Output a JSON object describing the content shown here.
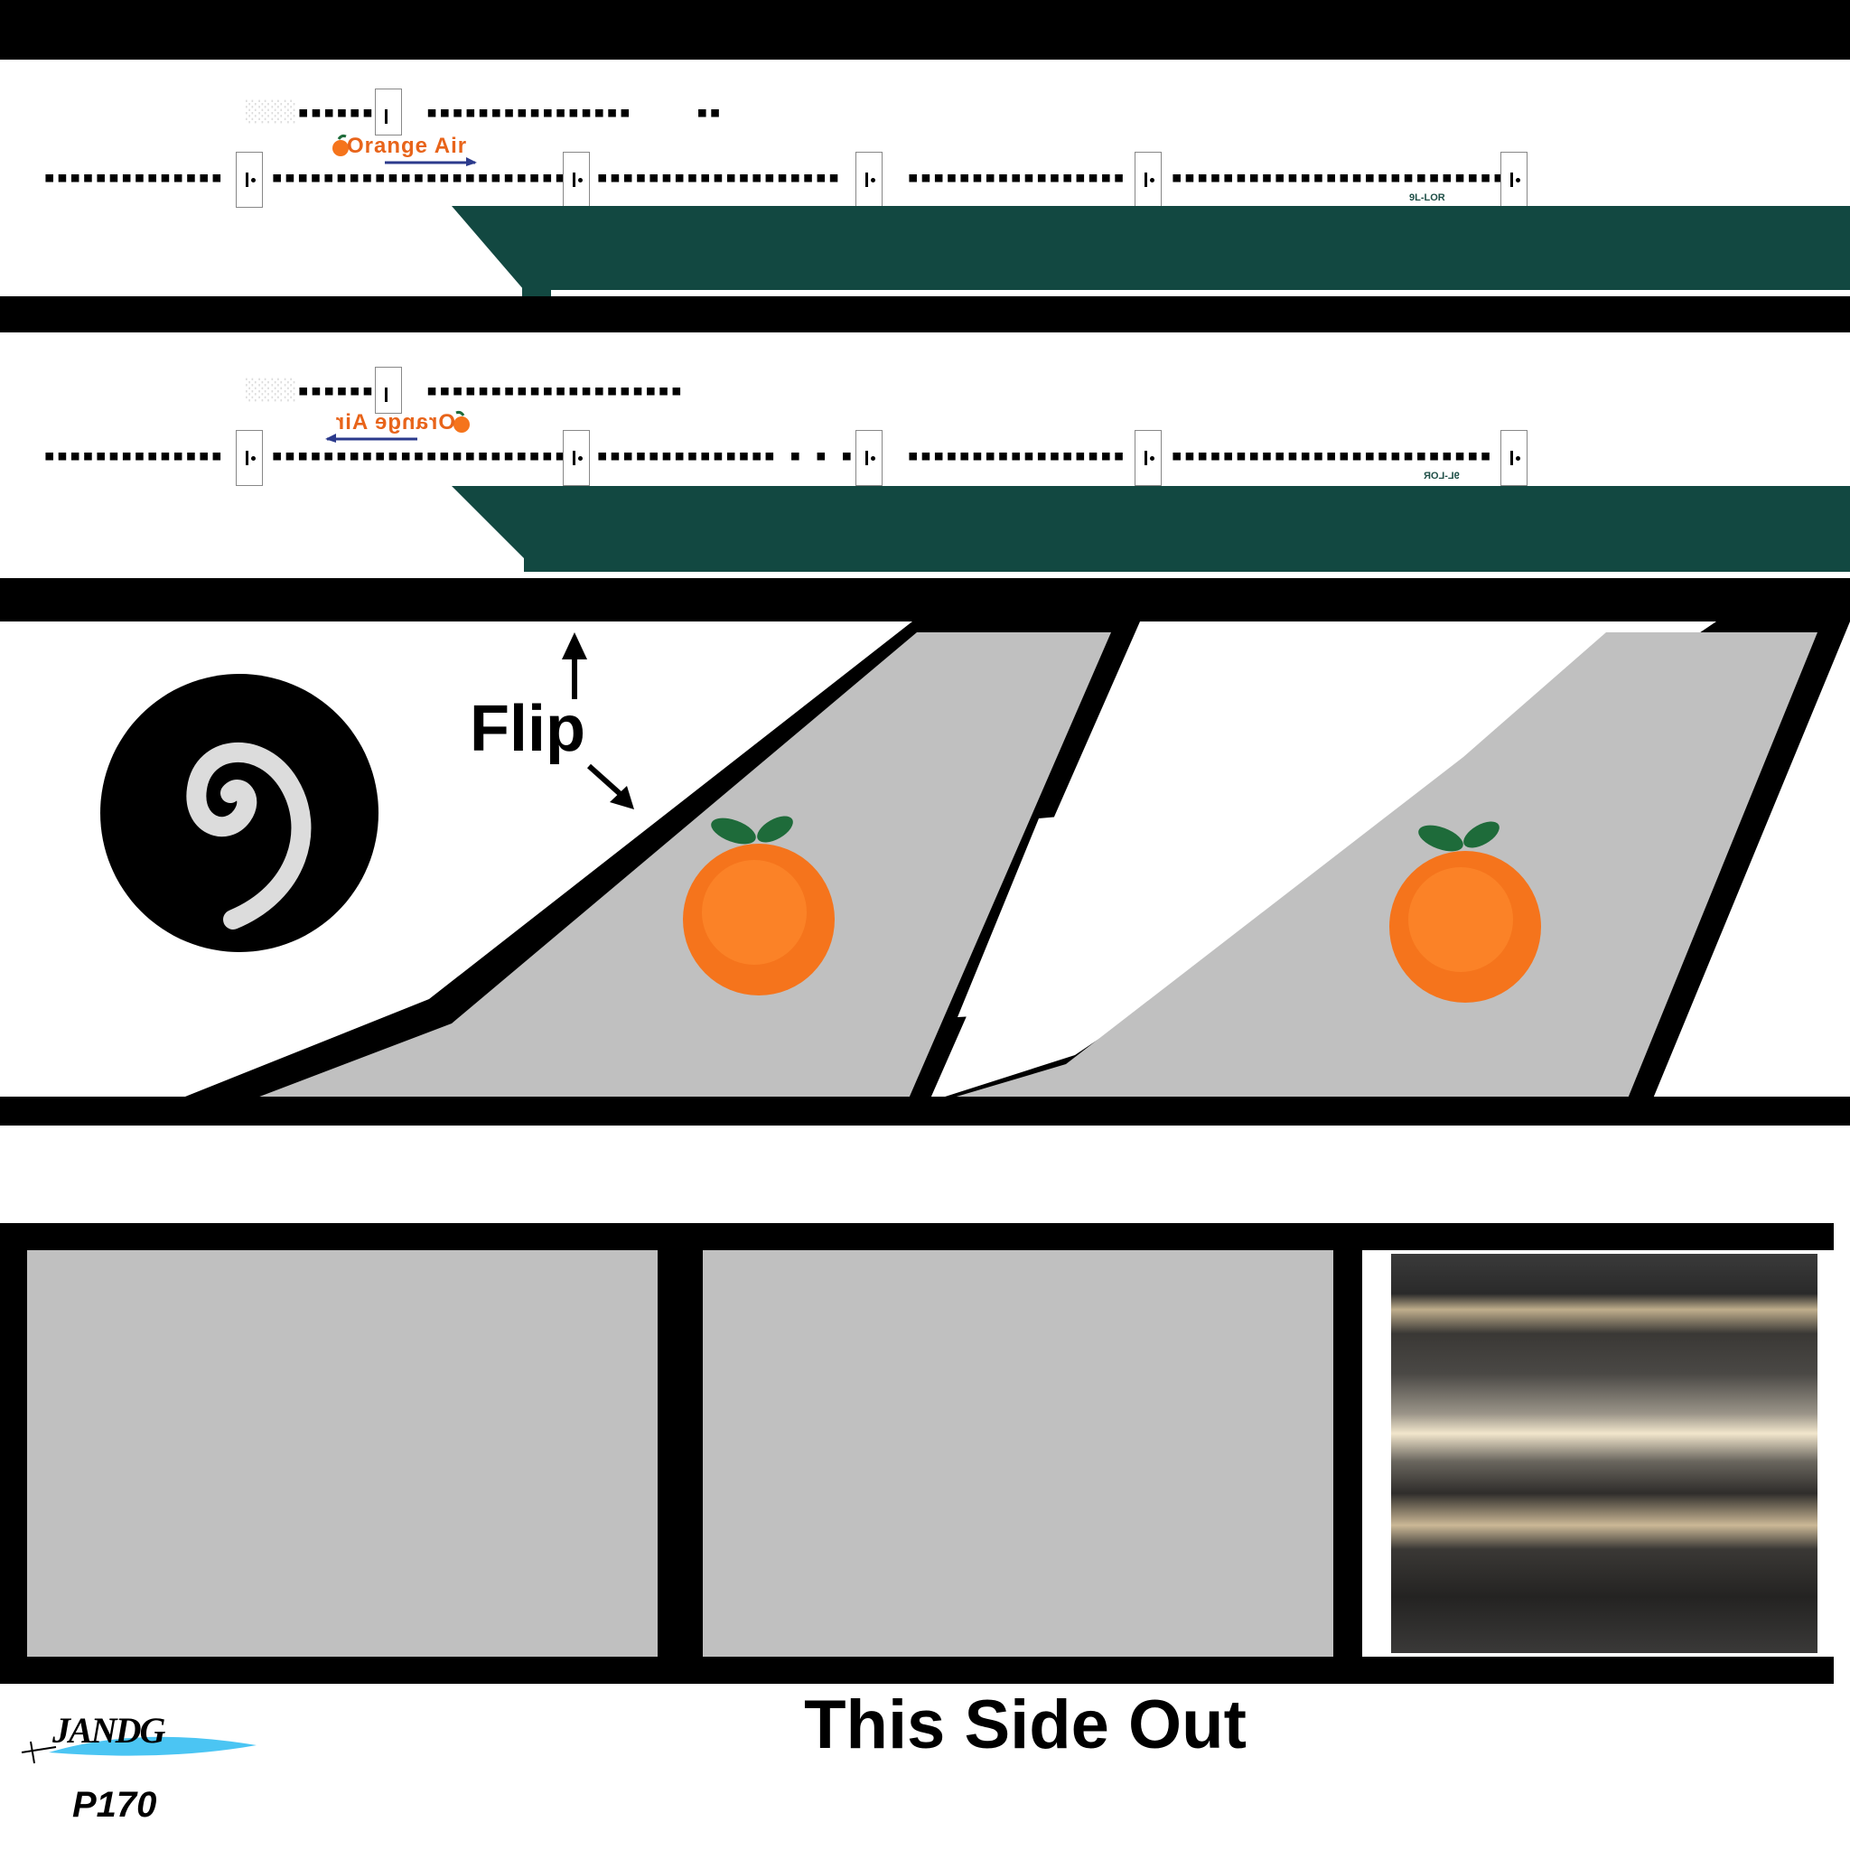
{
  "fuselage_top": {
    "logo": "Orange Air",
    "registration": "9L-LOR",
    "window_rows": [
      "upper",
      "main"
    ]
  },
  "fuselage_bottom": {
    "logo": "Orange Air",
    "registration": "9L-LOR"
  },
  "tail": {
    "flip_label": "Flip"
  },
  "footer": {
    "side_label": "This Side Out",
    "brand": "JANDG",
    "model": "P170"
  },
  "colors": {
    "belly": "#124841",
    "orange": "#f5741c",
    "leaf": "#1e6b3a",
    "grey": "#c0c0c0",
    "logo_arrow": "#2b3a8c"
  }
}
